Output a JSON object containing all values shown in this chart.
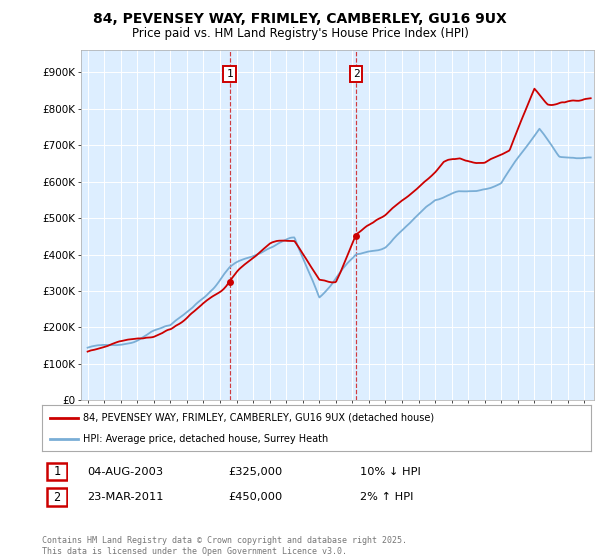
{
  "title_line1": "84, PEVENSEY WAY, FRIMLEY, CAMBERLEY, GU16 9UX",
  "title_line2": "Price paid vs. HM Land Registry's House Price Index (HPI)",
  "red_color": "#cc0000",
  "blue_color": "#7aaed6",
  "bg_color": "#ddeeff",
  "marker1_year": 2003.58,
  "marker2_year": 2011.22,
  "marker1_red": 325000,
  "marker2_red": 450000,
  "legend_label_red": "84, PEVENSEY WAY, FRIMLEY, CAMBERLEY, GU16 9UX (detached house)",
  "legend_label_blue": "HPI: Average price, detached house, Surrey Heath",
  "ann1_label": "1",
  "ann1_date": "04-AUG-2003",
  "ann1_price": "£325,000",
  "ann1_change": "10% ↓ HPI",
  "ann2_label": "2",
  "ann2_date": "23-MAR-2011",
  "ann2_price": "£450,000",
  "ann2_change": "2% ↑ HPI",
  "footer": "Contains HM Land Registry data © Crown copyright and database right 2025.\nThis data is licensed under the Open Government Licence v3.0.",
  "yticks": [
    0,
    100000,
    200000,
    300000,
    400000,
    500000,
    600000,
    700000,
    800000,
    900000
  ],
  "ytick_labels": [
    "£0",
    "£100K",
    "£200K",
    "£300K",
    "£400K",
    "£500K",
    "£600K",
    "£700K",
    "£800K",
    "£900K"
  ],
  "ylim": [
    0,
    960000
  ],
  "xlim_lo": 1994.6,
  "xlim_hi": 2025.6
}
